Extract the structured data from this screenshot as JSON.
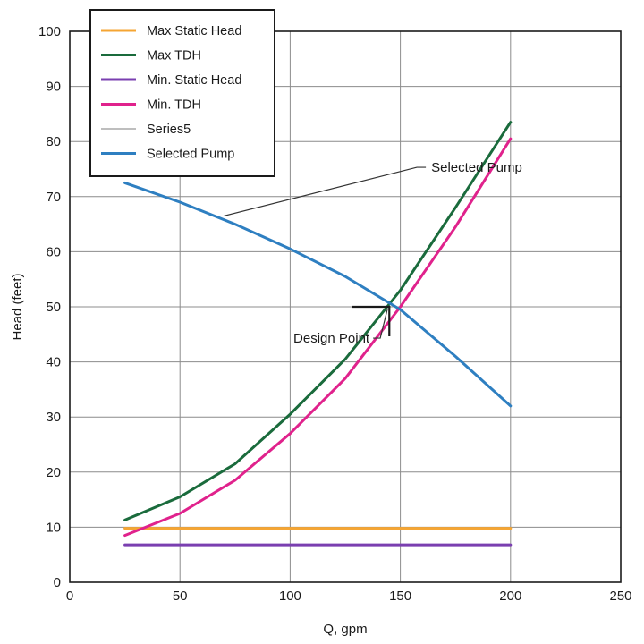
{
  "chart_data": {
    "type": "line",
    "title": "",
    "xlabel": "Q, gpm",
    "ylabel": "Head (feet)",
    "xlim": [
      0,
      250
    ],
    "ylim": [
      0,
      100
    ],
    "xticks": [
      0,
      50,
      100,
      150,
      200,
      250
    ],
    "yticks": [
      0,
      10,
      20,
      30,
      40,
      50,
      60,
      70,
      80,
      90,
      100
    ],
    "grid": true,
    "legend_position": "top-left",
    "series": [
      {
        "name": "Max Static Head",
        "color": "#f5a533",
        "x": [
          25,
          200
        ],
        "y": [
          9.8,
          9.8
        ]
      },
      {
        "name": "Max TDH",
        "color": "#1a6b3c",
        "x": [
          25,
          50,
          75,
          100,
          125,
          150,
          175,
          200
        ],
        "y": [
          11.3,
          15.5,
          21.5,
          30.5,
          40.5,
          53,
          68,
          83.5
        ]
      },
      {
        "name": "Min. Static Head",
        "color": "#7a3fb0",
        "x": [
          25,
          200
        ],
        "y": [
          6.8,
          6.8
        ]
      },
      {
        "name": "Min. TDH",
        "color": "#e0228c",
        "x": [
          25,
          50,
          75,
          100,
          125,
          150,
          175,
          200
        ],
        "y": [
          8.5,
          12.5,
          18.5,
          27,
          37,
          50,
          64.5,
          80.5
        ]
      },
      {
        "name": "Series5",
        "color": "#b5b5b5",
        "x": [],
        "y": []
      },
      {
        "name": "Selected Pump",
        "color": "#2e7fc1",
        "x": [
          25,
          50,
          75,
          100,
          125,
          150,
          175,
          200
        ],
        "y": [
          72.5,
          69,
          65,
          60.5,
          55.5,
          49.5,
          41,
          32
        ]
      }
    ],
    "annotations": [
      {
        "text": "Selected Pump",
        "x": 164,
        "y": 74.5,
        "point_x": 70,
        "point_y": 66.5
      },
      {
        "text": "Design Point",
        "x": 136,
        "y": 43.5,
        "point_x": 145,
        "point_y": 50
      }
    ]
  }
}
